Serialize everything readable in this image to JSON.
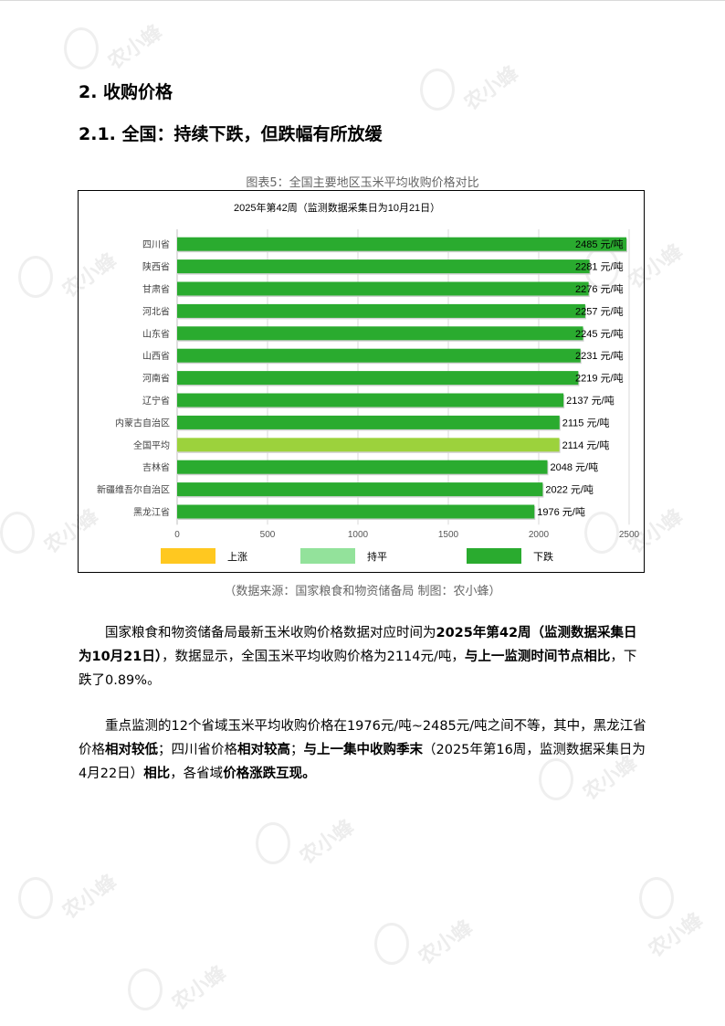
{
  "headings": {
    "section": "2. 收购价格",
    "subsection": "2.1.  全国：持续下跌，但跌幅有所放缓"
  },
  "figure": {
    "caption": "图表5：全国主要地区玉米平均收购价格对比",
    "source": "（数据来源：国家粮食和物资储备局    制图：农小蜂）"
  },
  "chart_data": {
    "type": "bar",
    "orientation": "horizontal",
    "title": "2025年第42周（监测数据采集日为10月21日）",
    "unit_suffix": " 元/吨",
    "categories": [
      "四川省",
      "陕西省",
      "甘肃省",
      "河北省",
      "山东省",
      "山西省",
      "河南省",
      "辽宁省",
      "内蒙古自治区",
      "全国平均",
      "吉林省",
      "新疆维吾尔自治区",
      "黑龙江省"
    ],
    "values": [
      2485,
      2281,
      2276,
      2257,
      2245,
      2231,
      2219,
      2137,
      2115,
      2114,
      2048,
      2022,
      1976
    ],
    "highlight_category": "全国平均",
    "xlim": [
      0,
      2500
    ],
    "xticks": [
      0,
      500,
      1000,
      1500,
      2000,
      2500
    ],
    "grid": true,
    "legend_position": "bottom",
    "legend": [
      {
        "name": "上涨",
        "color": "#ffc820"
      },
      {
        "name": "持平",
        "color": "#93e29b"
      },
      {
        "name": "下跌",
        "color": "#2aab2f"
      }
    ],
    "colors": {
      "down": "#2aab2f",
      "average": "#9cd23c"
    }
  },
  "paragraphs": {
    "p1": [
      {
        "text": "国家粮食和物资储备局最新玉米收购价格数据对应时间为",
        "bold": false
      },
      {
        "text": "2025年第42周（监测数据采集日为10月21日）",
        "bold": true
      },
      {
        "text": "，数据显示，全国玉米平均收购价格为2114元/吨，",
        "bold": false
      },
      {
        "text": "与上一监测时间节点相比",
        "bold": true
      },
      {
        "text": "，下跌了0.89%。",
        "bold": false
      }
    ],
    "p2": [
      {
        "text": "重点监测的12个省域玉米平均收购价格在1976元/吨~2485元/吨之间不等，其中，黑龙江省价格",
        "bold": false
      },
      {
        "text": "相对较低",
        "bold": true
      },
      {
        "text": "；四川省价格",
        "bold": false
      },
      {
        "text": "相对较高",
        "bold": true
      },
      {
        "text": "；",
        "bold": false
      },
      {
        "text": "与上一集中收购季末",
        "bold": true
      },
      {
        "text": "（2025年第16周，监测数据采集日为4月22日）",
        "bold": false
      },
      {
        "text": "相比",
        "bold": true
      },
      {
        "text": "，各省域",
        "bold": false
      },
      {
        "text": "价格涨跌互现。",
        "bold": true
      }
    ]
  },
  "watermark": {
    "text": "农小蜂"
  }
}
